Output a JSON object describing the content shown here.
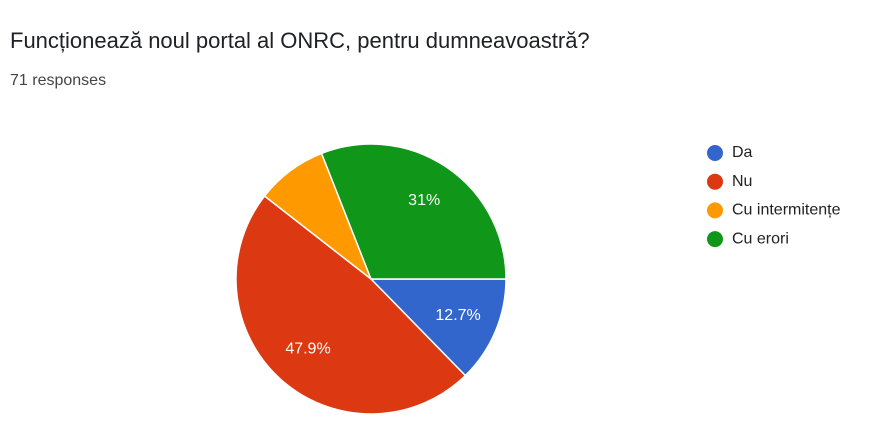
{
  "chart_data": {
    "type": "pie",
    "title": "Funcționează noul portal al ONRC, pentru dumneavoastră?",
    "subtitle": "71 responses",
    "categories": [
      "Da",
      "Nu",
      "Cu intermitențe",
      "Cu erori"
    ],
    "values": [
      12.7,
      47.9,
      8.5,
      31
    ],
    "value_labels": [
      "12.7%",
      "47.9%",
      null,
      "31%"
    ],
    "colors": [
      "#3366cc",
      "#dc3912",
      "#ff9900",
      "#109618"
    ],
    "legend": "right"
  }
}
